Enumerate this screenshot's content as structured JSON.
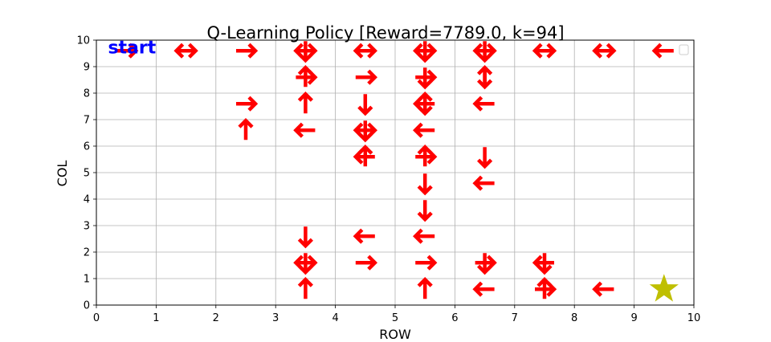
{
  "chart_data": {
    "type": "scatter",
    "title": "Q-Learning Policy [Reward=7789.0, k=94]",
    "xlabel": "ROW",
    "ylabel": "COL",
    "xlim": [
      0,
      10
    ],
    "ylim": [
      0,
      10
    ],
    "xticks": [
      "0",
      "1",
      "2",
      "3",
      "4",
      "5",
      "6",
      "7",
      "8",
      "9",
      "10"
    ],
    "yticks": [
      "0",
      "1",
      "2",
      "3",
      "4",
      "5",
      "6",
      "7",
      "8",
      "9",
      "10"
    ],
    "grid": true,
    "legend": "upper-right (empty)",
    "start_label": "start",
    "start_position": [
      0.1,
      9.8
    ],
    "goal": {
      "x": 9.5,
      "y": 0.6,
      "marker": "star",
      "color": "#bfbf00"
    },
    "arrow_color": "#ff0000",
    "policy": [
      {
        "x": 0.5,
        "y": 9.6,
        "dirs": [
          "right"
        ]
      },
      {
        "x": 1.5,
        "y": 9.6,
        "dirs": [
          "left",
          "right"
        ]
      },
      {
        "x": 2.5,
        "y": 9.6,
        "dirs": [
          "right"
        ]
      },
      {
        "x": 3.5,
        "y": 9.6,
        "dirs": [
          "left",
          "right",
          "down"
        ]
      },
      {
        "x": 4.5,
        "y": 9.6,
        "dirs": [
          "left",
          "right"
        ]
      },
      {
        "x": 5.5,
        "y": 9.6,
        "dirs": [
          "left",
          "right",
          "down"
        ]
      },
      {
        "x": 6.5,
        "y": 9.6,
        "dirs": [
          "left",
          "right",
          "down"
        ]
      },
      {
        "x": 7.5,
        "y": 9.6,
        "dirs": [
          "left",
          "right"
        ]
      },
      {
        "x": 8.5,
        "y": 9.6,
        "dirs": [
          "left",
          "right"
        ]
      },
      {
        "x": 9.5,
        "y": 9.6,
        "dirs": [
          "left"
        ]
      },
      {
        "x": 3.5,
        "y": 8.6,
        "dirs": [
          "up",
          "right"
        ]
      },
      {
        "x": 4.5,
        "y": 8.6,
        "dirs": [
          "right"
        ]
      },
      {
        "x": 5.5,
        "y": 8.6,
        "dirs": [
          "right",
          "down"
        ]
      },
      {
        "x": 6.5,
        "y": 8.6,
        "dirs": [
          "up",
          "down"
        ]
      },
      {
        "x": 2.5,
        "y": 7.6,
        "dirs": [
          "right"
        ]
      },
      {
        "x": 3.5,
        "y": 7.6,
        "dirs": [
          "up"
        ]
      },
      {
        "x": 4.5,
        "y": 7.6,
        "dirs": [
          "down"
        ]
      },
      {
        "x": 5.5,
        "y": 7.6,
        "dirs": [
          "up",
          "down",
          "left"
        ]
      },
      {
        "x": 6.5,
        "y": 7.6,
        "dirs": [
          "left"
        ]
      },
      {
        "x": 2.5,
        "y": 6.6,
        "dirs": [
          "up"
        ]
      },
      {
        "x": 3.5,
        "y": 6.6,
        "dirs": [
          "left"
        ]
      },
      {
        "x": 4.5,
        "y": 6.6,
        "dirs": [
          "left",
          "right",
          "down"
        ]
      },
      {
        "x": 5.5,
        "y": 6.6,
        "dirs": [
          "left"
        ]
      },
      {
        "x": 4.5,
        "y": 5.6,
        "dirs": [
          "up",
          "left"
        ]
      },
      {
        "x": 5.5,
        "y": 5.6,
        "dirs": [
          "up",
          "right"
        ]
      },
      {
        "x": 6.5,
        "y": 5.6,
        "dirs": [
          "down"
        ]
      },
      {
        "x": 5.5,
        "y": 4.6,
        "dirs": [
          "down"
        ]
      },
      {
        "x": 6.5,
        "y": 4.6,
        "dirs": [
          "left"
        ]
      },
      {
        "x": 5.5,
        "y": 3.6,
        "dirs": [
          "down"
        ]
      },
      {
        "x": 3.5,
        "y": 2.6,
        "dirs": [
          "down"
        ]
      },
      {
        "x": 4.5,
        "y": 2.6,
        "dirs": [
          "left"
        ]
      },
      {
        "x": 5.5,
        "y": 2.6,
        "dirs": [
          "left"
        ]
      },
      {
        "x": 3.5,
        "y": 1.6,
        "dirs": [
          "left",
          "right",
          "down"
        ]
      },
      {
        "x": 4.5,
        "y": 1.6,
        "dirs": [
          "right"
        ]
      },
      {
        "x": 5.5,
        "y": 1.6,
        "dirs": [
          "right"
        ]
      },
      {
        "x": 6.5,
        "y": 1.6,
        "dirs": [
          "right",
          "down"
        ]
      },
      {
        "x": 7.5,
        "y": 1.6,
        "dirs": [
          "left",
          "down"
        ]
      },
      {
        "x": 3.5,
        "y": 0.6,
        "dirs": [
          "up"
        ]
      },
      {
        "x": 5.5,
        "y": 0.6,
        "dirs": [
          "up"
        ]
      },
      {
        "x": 6.5,
        "y": 0.6,
        "dirs": [
          "left"
        ]
      },
      {
        "x": 7.5,
        "y": 0.6,
        "dirs": [
          "up",
          "right"
        ]
      },
      {
        "x": 8.5,
        "y": 0.6,
        "dirs": [
          "left"
        ]
      }
    ]
  }
}
